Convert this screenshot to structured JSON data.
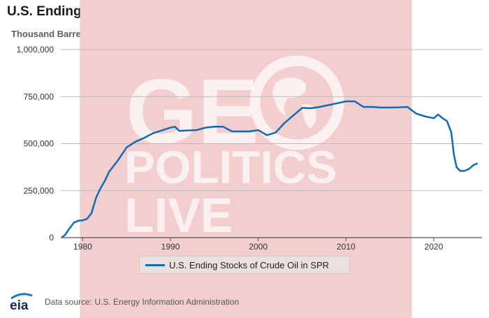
{
  "header": {
    "title": "U.S. Ending Stocks of Crude Oil in SPR",
    "units": "Thousand Barrels"
  },
  "watermark": {
    "line1": "GE",
    "line1_globe": "O",
    "line2": "POLITICS",
    "line3": "LIVE"
  },
  "legend": {
    "label": "U.S. Ending Stocks of Crude Oil in SPR"
  },
  "footer": {
    "logo_text": "eia",
    "source": "Data source: U.S. Energy Information Administration"
  },
  "colors": {
    "line": "#0f6cb3",
    "band": "#f3cece",
    "grid": "#bbbbbb"
  },
  "chart_data": {
    "type": "line",
    "title": "U.S. Ending Stocks of Crude Oil in SPR",
    "ylabel": "Thousand Barrels",
    "xlabel": "",
    "xlim": [
      1977.5,
      2025.5
    ],
    "ylim": [
      0,
      1000000
    ],
    "yticks": [
      0,
      250000,
      500000,
      750000,
      1000000
    ],
    "ytick_labels": [
      "0",
      "250,000",
      "500,000",
      "750,000",
      "1,000,000"
    ],
    "xticks": [
      1980,
      1990,
      2000,
      2010,
      2020
    ],
    "xtick_labels": [
      "1980",
      "1990",
      "2000",
      "2010",
      "2020"
    ],
    "legend_position": "bottom-center",
    "shaded_range": [
      1980,
      2017.5
    ],
    "series": [
      {
        "name": "U.S. Ending Stocks of Crude Oil in SPR",
        "x": [
          1977.6,
          1978,
          1978.5,
          1979,
          1979.5,
          1980,
          1980.5,
          1981,
          1981.5,
          1982,
          1982.5,
          1983,
          1984,
          1985,
          1986,
          1987,
          1988,
          1989,
          1990,
          1990.5,
          1991,
          1993,
          1994,
          1995,
          1996,
          1997,
          1998,
          1999,
          2000,
          2001,
          2002,
          2003,
          2004,
          2005,
          2006,
          2007,
          2008,
          2009,
          2010,
          2011,
          2012,
          2013,
          2014,
          2015,
          2016,
          2017,
          2018,
          2019,
          2020,
          2020.5,
          2021,
          2021.5,
          2022,
          2022.3,
          2022.6,
          2023,
          2023.5,
          2024,
          2024.5,
          2025
        ],
        "values": [
          0,
          15000,
          50000,
          80000,
          90000,
          92000,
          100000,
          130000,
          210000,
          260000,
          300000,
          350000,
          410000,
          480000,
          510000,
          530000,
          555000,
          570000,
          585000,
          590000,
          568000,
          572000,
          585000,
          590000,
          590000,
          565000,
          565000,
          565000,
          572000,
          545000,
          560000,
          610000,
          650000,
          690000,
          688000,
          695000,
          705000,
          715000,
          725000,
          725000,
          695000,
          695000,
          692000,
          692000,
          693000,
          695000,
          660000,
          645000,
          635000,
          655000,
          635000,
          620000,
          560000,
          440000,
          375000,
          355000,
          355000,
          365000,
          385000,
          395000
        ]
      }
    ]
  }
}
